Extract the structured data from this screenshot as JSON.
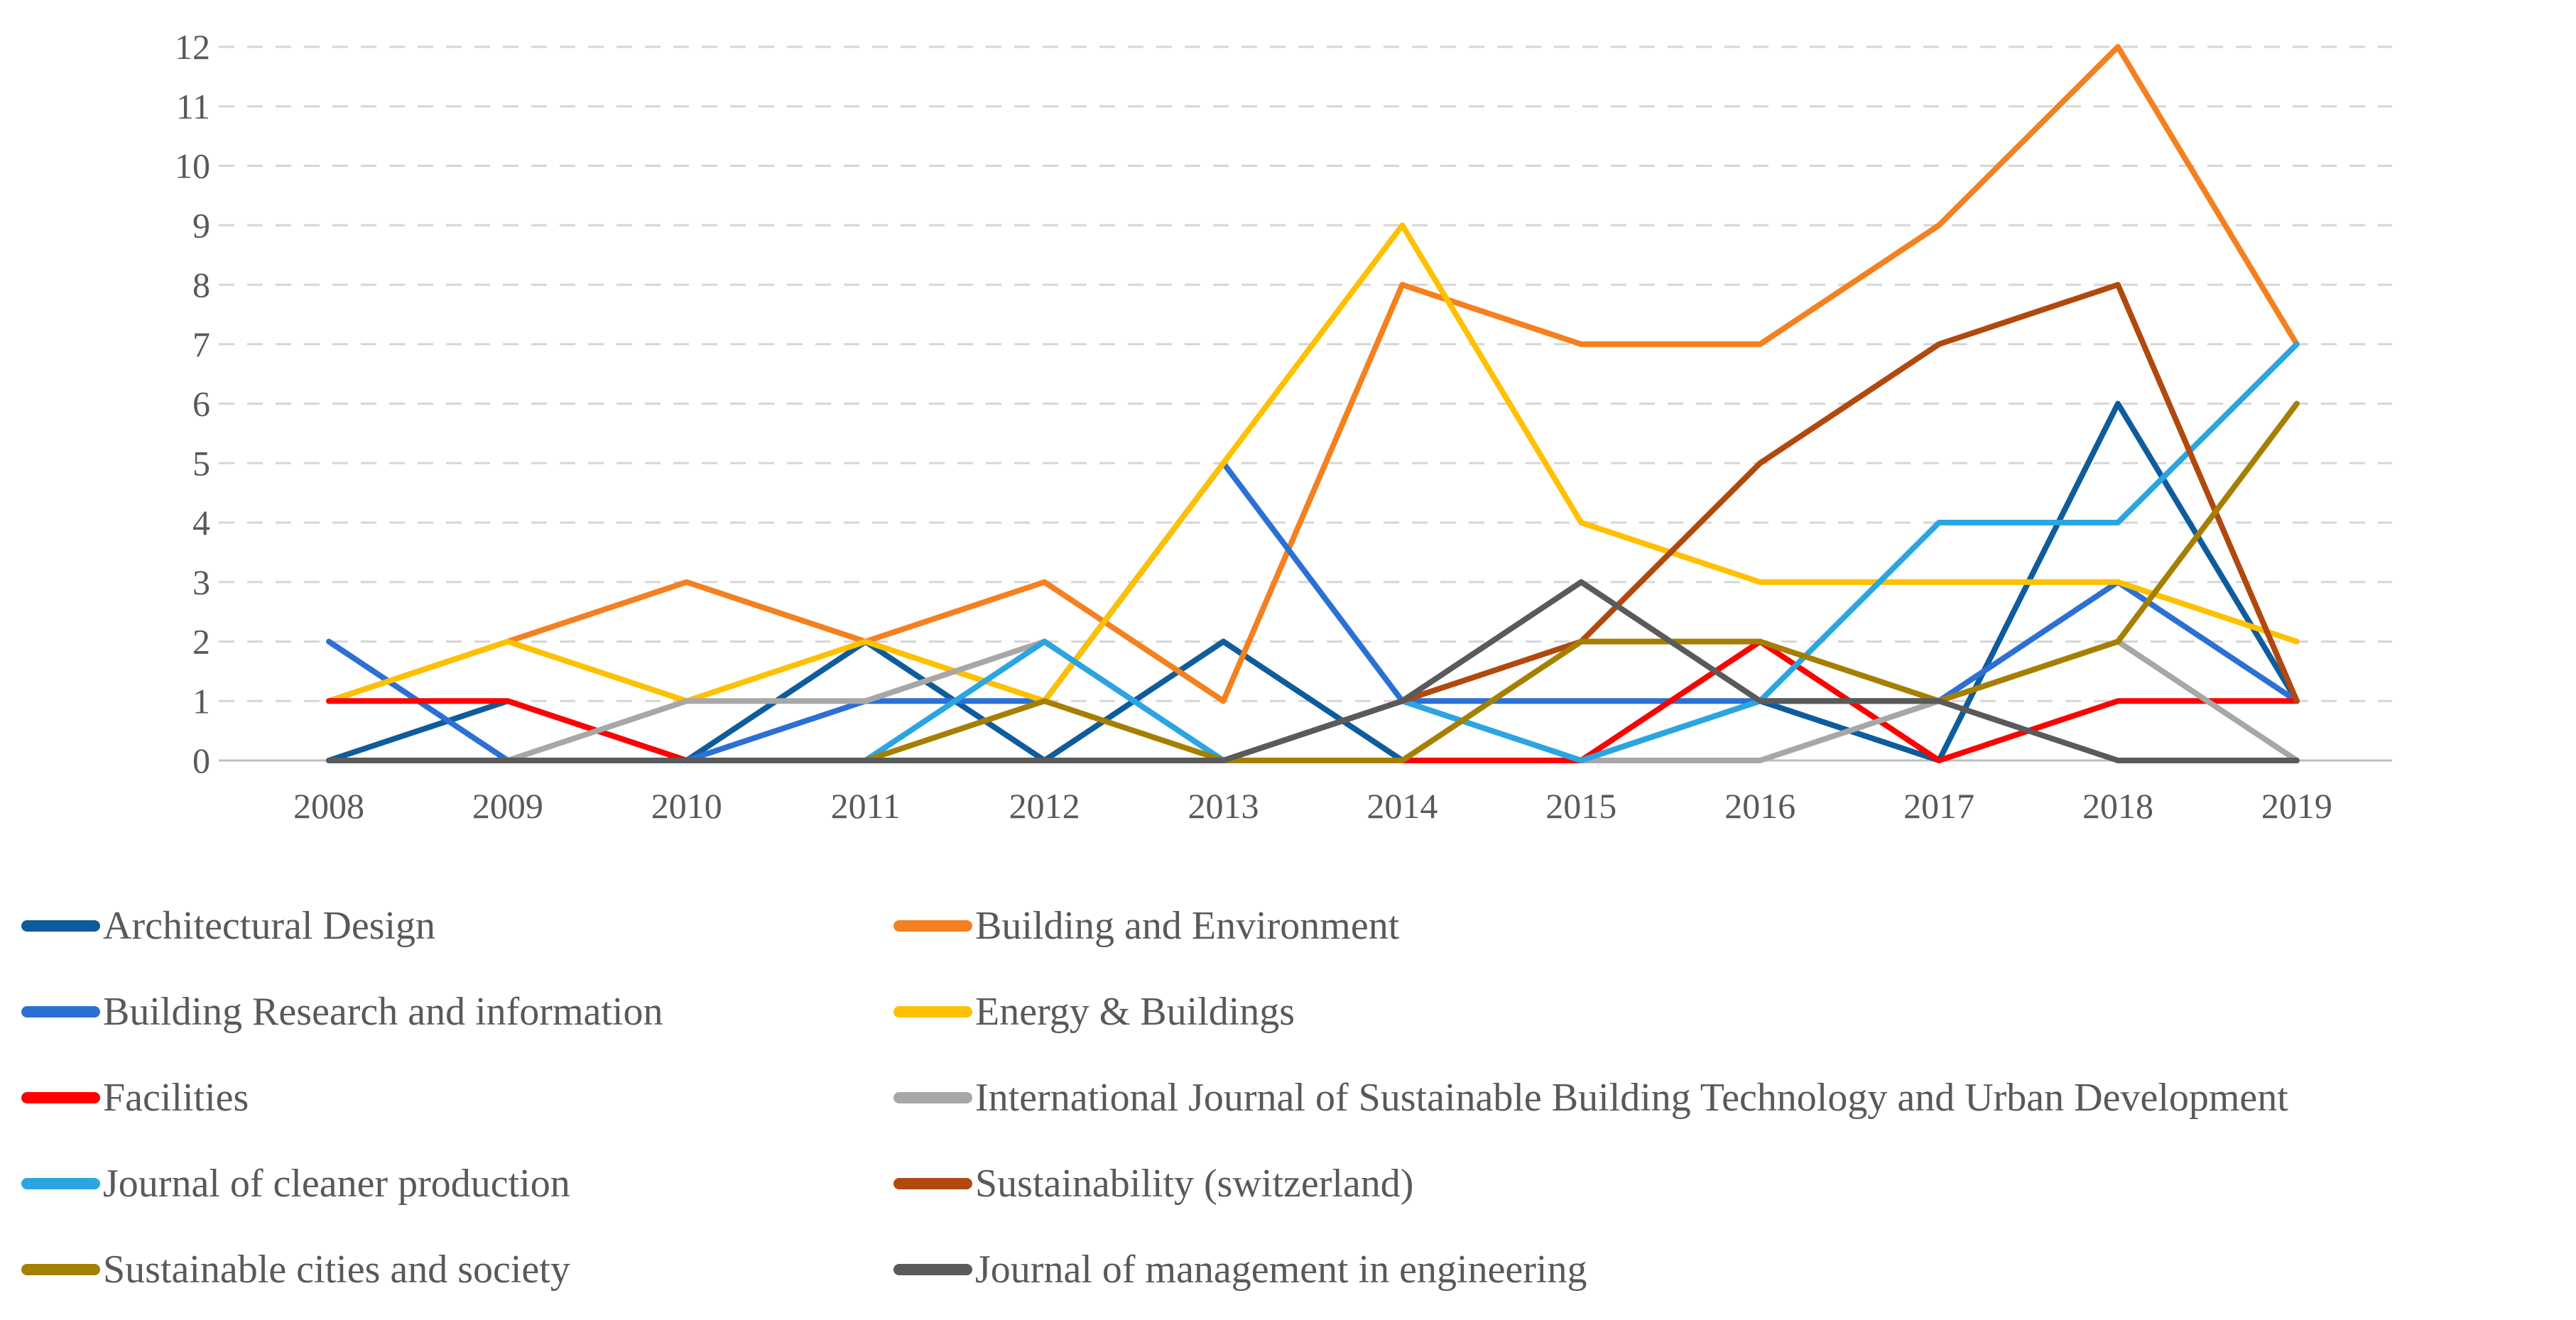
{
  "figure": {
    "background_color": "#FFFFFF",
    "axis_text_color": "#595959",
    "gridline_color": "#D6D6D6",
    "zero_axis_color": "#BFBFBF"
  },
  "chart_data": {
    "type": "line",
    "title": "",
    "xlabel": "",
    "ylabel": "",
    "categories": [
      "2008",
      "2009",
      "2010",
      "2011",
      "2012",
      "2013",
      "2014",
      "2015",
      "2016",
      "2017",
      "2018",
      "2019"
    ],
    "ylim": [
      0,
      12
    ],
    "y_ticks": [
      "0",
      "1",
      "2",
      "3",
      "4",
      "5",
      "6",
      "7",
      "8",
      "9",
      "10",
      "11",
      "12"
    ],
    "grid": "horizontal-dashed",
    "legend_position": "bottom-two-columns",
    "series": [
      {
        "name": "Architectural Design",
        "color": "#0E5C9C",
        "values": [
          0,
          1,
          0,
          2,
          0,
          2,
          0,
          0,
          1,
          0,
          6,
          1
        ]
      },
      {
        "name": "Building and Environment",
        "color": "#F4801F",
        "values": [
          1,
          2,
          3,
          2,
          3,
          1,
          8,
          7,
          7,
          9,
          12,
          7
        ]
      },
      {
        "name": "Building Research and information",
        "color": "#2C70D4",
        "values": [
          2,
          0,
          0,
          1,
          1,
          5,
          1,
          1,
          1,
          1,
          3,
          1
        ]
      },
      {
        "name": "Energy & Buildings",
        "color": "#FFC000",
        "values": [
          1,
          2,
          1,
          2,
          1,
          5,
          9,
          4,
          3,
          3,
          3,
          2
        ]
      },
      {
        "name": "Facilities",
        "color": "#FE0000",
        "values": [
          1,
          1,
          0,
          0,
          0,
          0,
          0,
          0,
          2,
          0,
          1,
          1
        ]
      },
      {
        "name": "International Journal of Sustainable Building Technology and Urban Development",
        "color": "#A7A7A7",
        "values": [
          0,
          0,
          1,
          1,
          2,
          0,
          1,
          0,
          0,
          1,
          2,
          0
        ]
      },
      {
        "name": "Journal of cleaner production",
        "color": "#2AA5E2",
        "values": [
          0,
          0,
          0,
          0,
          2,
          0,
          1,
          0,
          1,
          4,
          4,
          7
        ]
      },
      {
        "name": "Sustainability (switzerland)",
        "color": "#B1480D",
        "values": [
          0,
          0,
          0,
          0,
          0,
          0,
          1,
          2,
          5,
          7,
          8,
          1
        ]
      },
      {
        "name": "Sustainable cities and society",
        "color": "#A57F00",
        "values": [
          0,
          0,
          0,
          0,
          1,
          0,
          0,
          2,
          2,
          1,
          2,
          6
        ]
      },
      {
        "name": "Journal of management in engineering",
        "color": "#5A5A5A",
        "values": [
          0,
          0,
          0,
          0,
          0,
          0,
          1,
          3,
          1,
          1,
          0,
          0
        ]
      }
    ],
    "legend_columns": [
      [
        "Architectural Design",
        "Building Research and information",
        "Facilities",
        "Journal of cleaner production",
        "Sustainable cities and society"
      ],
      [
        "Building and Environment",
        "Energy & Buildings",
        "International Journal of Sustainable Building Technology and Urban Development",
        "Sustainability (switzerland)",
        "Journal of management in engineering"
      ]
    ]
  }
}
